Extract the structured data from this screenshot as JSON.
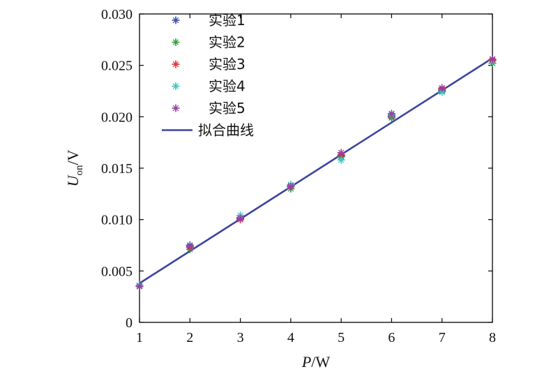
{
  "chart_data": {
    "type": "scatter",
    "x": [
      1,
      2,
      3,
      4,
      5,
      6,
      7,
      8
    ],
    "xlabel": "P/W",
    "ylabel": "U_on/V",
    "xlim": [
      1,
      8
    ],
    "ylim": [
      0,
      0.03
    ],
    "xticks": [
      "1",
      "2",
      "3",
      "4",
      "5",
      "6",
      "7",
      "8"
    ],
    "yticks": [
      "0",
      "0.005",
      "0.010",
      "0.015",
      "0.020",
      "0.025",
      "0.030"
    ],
    "legend_position": "top-left",
    "grid": false,
    "series": [
      {
        "name": "实验1",
        "color": "#3a4fb0",
        "values": [
          0.0035,
          0.0075,
          0.0102,
          0.0132,
          0.0162,
          0.02,
          0.0225,
          0.0256
        ]
      },
      {
        "name": "实验2",
        "color": "#2e9e3e",
        "values": [
          0.0035,
          0.0071,
          0.0101,
          0.013,
          0.0161,
          0.0199,
          0.0226,
          0.0252
        ]
      },
      {
        "name": "实验3",
        "color": "#e03030",
        "values": [
          0.0036,
          0.0073,
          0.01,
          0.0133,
          0.0163,
          0.0201,
          0.0227,
          0.0255
        ]
      },
      {
        "name": "实验4",
        "color": "#3fc4c4",
        "values": [
          0.0036,
          0.0074,
          0.0104,
          0.0134,
          0.0158,
          0.0202,
          0.0224,
          0.0254
        ]
      },
      {
        "name": "实验5",
        "color": "#9c3aa8",
        "values": [
          0.0035,
          0.0074,
          0.0101,
          0.0132,
          0.0165,
          0.0203,
          0.0228,
          0.0256
        ]
      }
    ],
    "fit": {
      "name": "拟合曲线",
      "color": "#3a44a0",
      "x": [
        1,
        8
      ],
      "y": [
        0.0038,
        0.0257
      ]
    }
  }
}
